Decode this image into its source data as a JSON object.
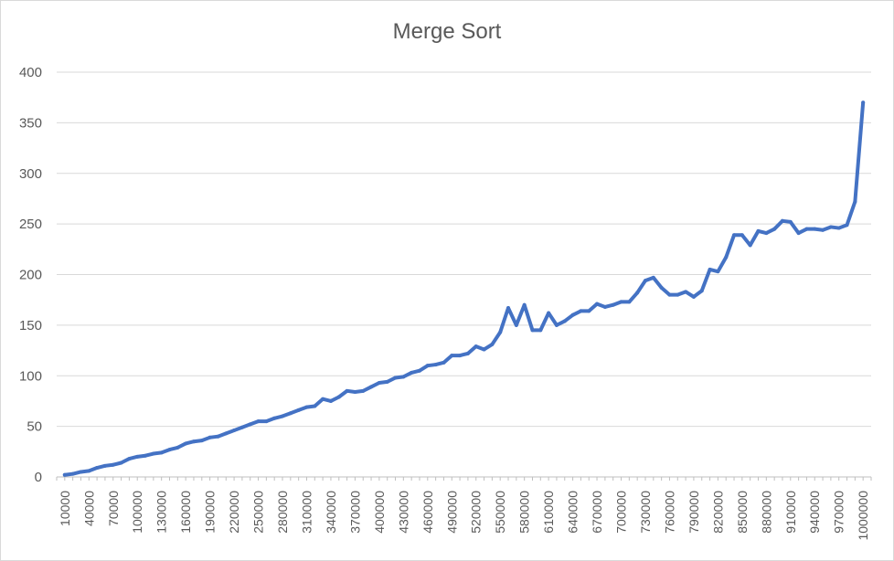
{
  "chart_data": {
    "type": "line",
    "title": "Merge Sort",
    "xlabel": "",
    "ylabel": "",
    "ylim": [
      0,
      400
    ],
    "y_ticks": [
      0,
      50,
      100,
      150,
      200,
      250,
      300,
      350,
      400
    ],
    "grid": "horizontal",
    "legend": "none",
    "x_tick_labels": [
      "10000",
      "40000",
      "70000",
      "100000",
      "130000",
      "160000",
      "190000",
      "220000",
      "250000",
      "280000",
      "310000",
      "340000",
      "370000",
      "400000",
      "430000",
      "460000",
      "490000",
      "520000",
      "550000",
      "580000",
      "610000",
      "640000",
      "670000",
      "700000",
      "730000",
      "760000",
      "790000",
      "820000",
      "850000",
      "880000",
      "910000",
      "940000",
      "970000",
      "1000000"
    ],
    "x": [
      10000,
      20000,
      30000,
      40000,
      50000,
      60000,
      70000,
      80000,
      90000,
      100000,
      110000,
      120000,
      130000,
      140000,
      150000,
      160000,
      170000,
      180000,
      190000,
      200000,
      210000,
      220000,
      230000,
      240000,
      250000,
      260000,
      270000,
      280000,
      290000,
      300000,
      310000,
      320000,
      330000,
      340000,
      350000,
      360000,
      370000,
      380000,
      390000,
      400000,
      410000,
      420000,
      430000,
      440000,
      450000,
      460000,
      470000,
      480000,
      490000,
      500000,
      510000,
      520000,
      530000,
      540000,
      550000,
      560000,
      570000,
      580000,
      590000,
      600000,
      610000,
      620000,
      630000,
      640000,
      650000,
      660000,
      670000,
      680000,
      690000,
      700000,
      710000,
      720000,
      730000,
      740000,
      750000,
      760000,
      770000,
      780000,
      790000,
      800000,
      810000,
      820000,
      830000,
      840000,
      850000,
      860000,
      870000,
      880000,
      890000,
      900000,
      910000,
      920000,
      930000,
      940000,
      950000,
      960000,
      970000,
      980000,
      990000,
      1000000
    ],
    "series": [
      {
        "color": "#4472c4",
        "values": [
          2,
          3,
          5,
          6,
          9,
          11,
          12,
          14,
          18,
          20,
          21,
          23,
          24,
          27,
          29,
          33,
          35,
          36,
          39,
          40,
          43,
          46,
          49,
          52,
          55,
          55,
          58,
          60,
          63,
          66,
          69,
          70,
          77,
          75,
          79,
          85,
          84,
          85,
          89,
          93,
          94,
          98,
          99,
          103,
          105,
          110,
          111,
          113,
          120,
          120,
          122,
          129,
          126,
          131,
          143,
          167,
          150,
          170,
          145,
          145,
          162,
          150,
          154,
          160,
          164,
          164,
          171,
          168,
          170,
          173,
          173,
          182,
          194,
          197,
          187,
          180,
          180,
          183,
          178,
          184,
          205,
          203,
          217,
          239,
          239,
          229,
          243,
          241,
          245,
          253,
          252,
          241,
          245,
          245,
          244,
          247,
          246,
          249,
          272,
          370
        ]
      }
    ]
  }
}
